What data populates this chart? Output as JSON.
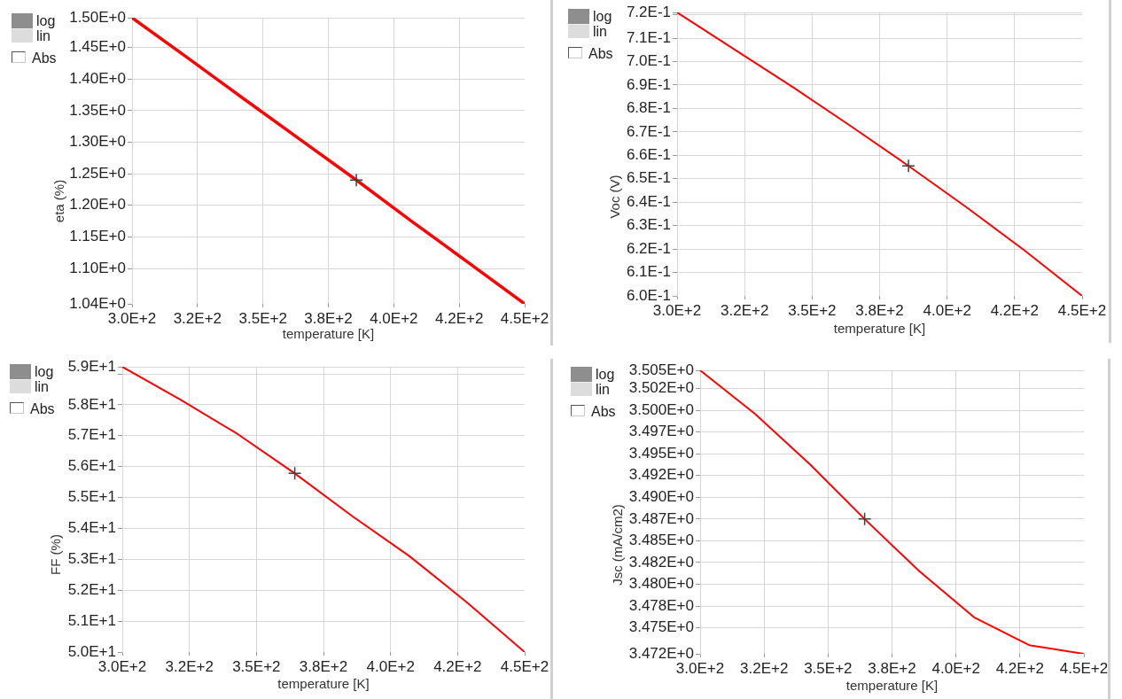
{
  "chart_data": [
    {
      "type": "line",
      "xlabel": "temperature [K]",
      "ylabel": "eta (%)",
      "annotations": [
        "log",
        "lin",
        "Abs"
      ],
      "grid": true,
      "x": [
        300,
        321.4,
        342.9,
        364.3,
        385.7,
        407.1,
        428.6,
        450
      ],
      "series": [
        {
          "color": "#ff0000",
          "values": [
            1.497,
            1.433,
            1.368,
            1.304,
            1.24,
            1.174,
            1.109,
            1.044
          ]
        },
        {
          "type": "scatter",
          "marker": "cross",
          "color": "#404040",
          "values": [
            null,
            null,
            null,
            null,
            1.24,
            null,
            null,
            null
          ]
        }
      ],
      "xlim": [
        300,
        450
      ],
      "xticks": [
        {
          "value": 300,
          "label": "3.0E+2"
        },
        {
          "value": 325,
          "label": "3.2E+2"
        },
        {
          "value": 350,
          "label": "3.5E+2"
        },
        {
          "value": 375,
          "label": "3.8E+2"
        },
        {
          "value": 400,
          "label": "4.0E+2"
        },
        {
          "value": 425,
          "label": "4.2E+2"
        },
        {
          "value": 450,
          "label": "4.5E+2"
        }
      ],
      "ylim": [
        1.044,
        1.497
      ],
      "yticks": [
        {
          "value": 1.497,
          "label": "1.50E+0"
        },
        {
          "value": 1.45,
          "label": "1.45E+0"
        },
        {
          "value": 1.4,
          "label": "1.40E+0"
        },
        {
          "value": 1.35,
          "label": "1.35E+0"
        },
        {
          "value": 1.3,
          "label": "1.30E+0"
        },
        {
          "value": 1.25,
          "label": "1.25E+0"
        },
        {
          "value": 1.2,
          "label": "1.20E+0"
        },
        {
          "value": 1.15,
          "label": "1.15E+0"
        },
        {
          "value": 1.1,
          "label": "1.10E+0"
        },
        {
          "value": 1.044,
          "label": "1.04E+0"
        }
      ]
    },
    {
      "type": "line",
      "xlabel": "temperature [K]",
      "ylabel": "Voc (V)",
      "annotations": [
        "log",
        "lin",
        "Abs"
      ],
      "grid": true,
      "x": [
        300,
        321.4,
        342.9,
        364.3,
        385.7,
        407.1,
        428.6,
        450
      ],
      "series": [
        {
          "color": "#ff0000",
          "values": [
            0.721,
            0.7051,
            0.6891,
            0.6725,
            0.6555,
            0.6379,
            0.6195,
            0.6
          ]
        },
        {
          "type": "scatter",
          "marker": "cross",
          "color": "#404040",
          "values": [
            null,
            null,
            null,
            null,
            0.6555,
            null,
            null,
            null
          ]
        }
      ],
      "xlim": [
        300,
        450
      ],
      "xticks": [
        {
          "value": 300,
          "label": "3.0E+2"
        },
        {
          "value": 325,
          "label": "3.2E+2"
        },
        {
          "value": 350,
          "label": "3.5E+2"
        },
        {
          "value": 375,
          "label": "3.8E+2"
        },
        {
          "value": 400,
          "label": "4.0E+2"
        },
        {
          "value": 425,
          "label": "4.2E+2"
        },
        {
          "value": 450,
          "label": "4.5E+2"
        }
      ],
      "ylim": [
        0.6,
        0.721
      ],
      "yticks": [
        {
          "value": 0.721,
          "label": "7.2E-1"
        },
        {
          "value": 0.72,
          "label": null
        },
        {
          "value": 0.71,
          "label": "7.1E-1"
        },
        {
          "value": 0.7,
          "label": "7.0E-1"
        },
        {
          "value": 0.69,
          "label": "6.9E-1"
        },
        {
          "value": 0.68,
          "label": "6.8E-1"
        },
        {
          "value": 0.67,
          "label": "6.7E-1"
        },
        {
          "value": 0.66,
          "label": "6.6E-1"
        },
        {
          "value": 0.65,
          "label": "6.5E-1"
        },
        {
          "value": 0.64,
          "label": "6.4E-1"
        },
        {
          "value": 0.63,
          "label": "6.3E-1"
        },
        {
          "value": 0.62,
          "label": "6.2E-1"
        },
        {
          "value": 0.61,
          "label": "6.1E-1"
        },
        {
          "value": 0.6,
          "label": "6.0E-1"
        }
      ]
    },
    {
      "type": "line",
      "xlabel": "temperature [K]",
      "ylabel": "FF (%)",
      "annotations": [
        "log",
        "lin",
        "Abs"
      ],
      "grid": true,
      "x": [
        300,
        321.4,
        342.9,
        364.3,
        385.7,
        407.1,
        428.6,
        450
      ],
      "series": [
        {
          "color": "#ff0000",
          "values": [
            59.23,
            58.18,
            57.06,
            55.78,
            54.4,
            53.1,
            51.6,
            50.0
          ]
        },
        {
          "type": "scatter",
          "marker": "cross",
          "color": "#404040",
          "values": [
            null,
            null,
            null,
            55.78,
            null,
            null,
            null,
            null
          ]
        }
      ],
      "xlim": [
        300,
        450
      ],
      "xticks": [
        {
          "value": 300,
          "label": "3.0E+2"
        },
        {
          "value": 325,
          "label": "3.2E+2"
        },
        {
          "value": 350,
          "label": "3.5E+2"
        },
        {
          "value": 375,
          "label": "3.8E+2"
        },
        {
          "value": 400,
          "label": "4.0E+2"
        },
        {
          "value": 425,
          "label": "4.2E+2"
        },
        {
          "value": 450,
          "label": "4.5E+2"
        }
      ],
      "ylim": [
        50.0,
        59.23
      ],
      "yticks": [
        {
          "value": 59.23,
          "label": "5.9E+1"
        },
        {
          "value": 59,
          "label": null
        },
        {
          "value": 58,
          "label": "5.8E+1"
        },
        {
          "value": 57,
          "label": "5.7E+1"
        },
        {
          "value": 56,
          "label": "5.6E+1"
        },
        {
          "value": 55,
          "label": "5.5E+1"
        },
        {
          "value": 54,
          "label": "5.4E+1"
        },
        {
          "value": 53,
          "label": "5.3E+1"
        },
        {
          "value": 52,
          "label": "5.2E+1"
        },
        {
          "value": 51,
          "label": "5.1E+1"
        },
        {
          "value": 50,
          "label": "5.0E+1"
        }
      ]
    },
    {
      "type": "line",
      "xlabel": "temperature [K]",
      "ylabel": "Jsc (mA/cm2)",
      "annotations": [
        "log",
        "lin",
        "Abs"
      ],
      "grid": true,
      "x": [
        300,
        321.4,
        342.9,
        364.3,
        385.7,
        407.1,
        428.6,
        450
      ],
      "series": [
        {
          "color": "#ff0000",
          "values": [
            3.5046,
            3.4996,
            3.4938,
            3.4875,
            3.4815,
            3.4762,
            3.473,
            3.472
          ]
        },
        {
          "type": "scatter",
          "marker": "cross",
          "color": "#404040",
          "values": [
            null,
            null,
            null,
            3.4875,
            null,
            null,
            null,
            null
          ]
        }
      ],
      "xlim": [
        300,
        450
      ],
      "xticks": [
        {
          "value": 300,
          "label": "3.0E+2"
        },
        {
          "value": 325,
          "label": "3.2E+2"
        },
        {
          "value": 350,
          "label": "3.5E+2"
        },
        {
          "value": 375,
          "label": "3.8E+2"
        },
        {
          "value": 400,
          "label": "4.0E+2"
        },
        {
          "value": 425,
          "label": "4.2E+2"
        },
        {
          "value": 450,
          "label": "4.5E+2"
        }
      ],
      "ylim": [
        3.472,
        3.5046
      ],
      "yticks": [
        {
          "value": 3.5046,
          "label": "3.505E+0"
        },
        {
          "value": 3.5025,
          "label": "3.502E+0"
        },
        {
          "value": 3.5,
          "label": "3.500E+0"
        },
        {
          "value": 3.4975,
          "label": "3.497E+0"
        },
        {
          "value": 3.495,
          "label": "3.495E+0"
        },
        {
          "value": 3.4925,
          "label": "3.492E+0"
        },
        {
          "value": 3.49,
          "label": "3.490E+0"
        },
        {
          "value": 3.4875,
          "label": "3.487E+0"
        },
        {
          "value": 3.485,
          "label": "3.485E+0"
        },
        {
          "value": 3.4825,
          "label": "3.482E+0"
        },
        {
          "value": 3.48,
          "label": "3.480E+0"
        },
        {
          "value": 3.4775,
          "label": "3.478E+0"
        },
        {
          "value": 3.475,
          "label": "3.475E+0"
        },
        {
          "value": 3.472,
          "label": "3.472E+0"
        }
      ]
    }
  ]
}
